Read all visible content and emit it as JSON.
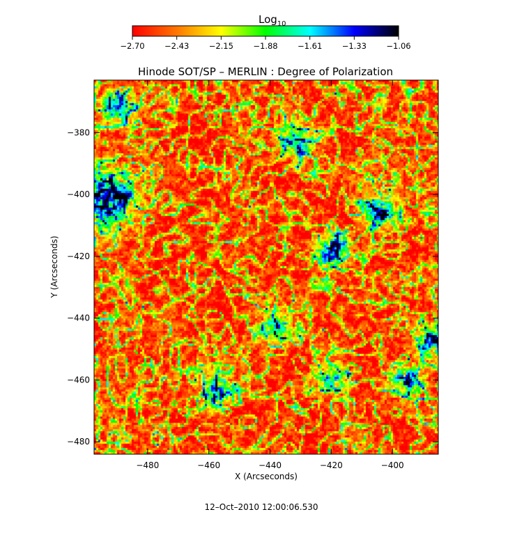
{
  "chart_data": {
    "type": "heatmap",
    "title": "Hinode SOT/SP – MERLIN : Degree of Polarization",
    "xlabel": "X (Arcseconds)",
    "ylabel": "Y (Arcseconds)",
    "xlim": [
      -497.5,
      -385
    ],
    "ylim": [
      -484,
      -363
    ],
    "x_ticks": [
      {
        "value": -480,
        "label": "−480"
      },
      {
        "value": -460,
        "label": "−460"
      },
      {
        "value": -440,
        "label": "−440"
      },
      {
        "value": -420,
        "label": "−420"
      },
      {
        "value": -400,
        "label": "−400"
      }
    ],
    "y_ticks": [
      {
        "value": -380,
        "label": "−380"
      },
      {
        "value": -400,
        "label": "−400"
      },
      {
        "value": -420,
        "label": "−420"
      },
      {
        "value": -440,
        "label": "−440"
      },
      {
        "value": -460,
        "label": "−460"
      },
      {
        "value": -480,
        "label": "−480"
      }
    ],
    "colorbar": {
      "title": "Log",
      "title_subscript": "10",
      "min": -2.7,
      "max": -1.06,
      "colormap": "rainbow reversed (red = low, black = high)",
      "colors": [
        "#ff0000",
        "#ff7700",
        "#ffff00",
        "#00ff00",
        "#00ffff",
        "#0000ff",
        "#000000"
      ],
      "tick_labels": [
        "−2.70",
        "−2.43",
        "−2.15",
        "−1.88",
        "−1.61",
        "−1.33",
        "−1.06"
      ]
    },
    "features": {
      "background_level": -2.6,
      "strong_polarization_regions": [
        {
          "x": -493,
          "y": -400,
          "level": -1.15,
          "extent": "large"
        },
        {
          "x": -490,
          "y": -372,
          "level": -1.5
        },
        {
          "x": -405,
          "y": -405,
          "level": -1.3
        },
        {
          "x": -420,
          "y": -418,
          "level": -1.4
        },
        {
          "x": -432,
          "y": -382,
          "level": -1.5
        },
        {
          "x": -387,
          "y": -447,
          "level": -1.4
        },
        {
          "x": -395,
          "y": -460,
          "level": -1.5
        },
        {
          "x": -420,
          "y": -460,
          "level": -1.6
        },
        {
          "x": -458,
          "y": -462,
          "level": -1.6
        },
        {
          "x": -438,
          "y": -442,
          "level": -1.6
        }
      ]
    }
  },
  "footer": {
    "timestamp": "12–Oct–2010 12:00:06.530"
  }
}
